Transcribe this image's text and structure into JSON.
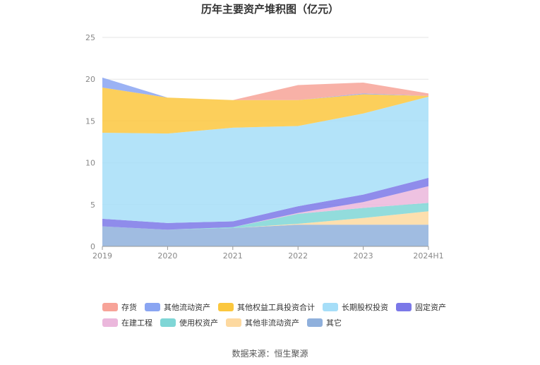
{
  "chart_data": {
    "type": "area",
    "stacked": true,
    "title": "历年主要资产堆积图（亿元）",
    "categories": [
      "2019",
      "2020",
      "2021",
      "2022",
      "2023",
      "2024H1"
    ],
    "ylim": [
      0,
      25
    ],
    "yticks": [
      "0",
      "5",
      "10",
      "15",
      "20",
      "25"
    ],
    "grid": true,
    "legend_position": "bottom",
    "series": [
      {
        "name": "其它",
        "color": "#8fb0dc",
        "values": [
          2.4,
          2.0,
          2.2,
          2.6,
          2.6,
          2.6
        ]
      },
      {
        "name": "其他非流动资产",
        "color": "#fdd9a0",
        "values": [
          0.0,
          0.0,
          0.0,
          0.1,
          0.8,
          1.6
        ]
      },
      {
        "name": "使用权资产",
        "color": "#7fd6d6",
        "values": [
          0.0,
          0.0,
          0.1,
          1.2,
          1.2,
          1.0
        ]
      },
      {
        "name": "在建工程",
        "color": "#ebb7dc",
        "values": [
          0.0,
          0.0,
          0.0,
          0.1,
          0.7,
          2.0
        ]
      },
      {
        "name": "固定资产",
        "color": "#7b78e8",
        "values": [
          0.9,
          0.8,
          0.7,
          0.8,
          0.9,
          1.0
        ]
      },
      {
        "name": "长期股权投资",
        "color": "#a6def8",
        "values": [
          10.3,
          10.7,
          11.2,
          9.6,
          9.7,
          9.7
        ]
      },
      {
        "name": "其他权益工具投资合计",
        "color": "#fbc73e",
        "values": [
          5.4,
          4.3,
          3.3,
          3.1,
          2.3,
          0.1
        ]
      },
      {
        "name": "其他流动资产",
        "color": "#8aa5f2",
        "values": [
          1.2,
          0.0,
          0.0,
          0.0,
          0.1,
          0.0
        ]
      },
      {
        "name": "存货",
        "color": "#f7a398",
        "values": [
          0.0,
          0.0,
          0.0,
          1.8,
          1.3,
          0.3
        ]
      }
    ]
  },
  "legend_rows": [
    [
      "存货",
      "其他流动资产",
      "其他权益工具投资合计",
      "长期股权投资",
      "固定资产"
    ],
    [
      "在建工程",
      "使用权资产",
      "其他非流动资产",
      "其它"
    ]
  ],
  "source": "数据来源：恒生聚源"
}
